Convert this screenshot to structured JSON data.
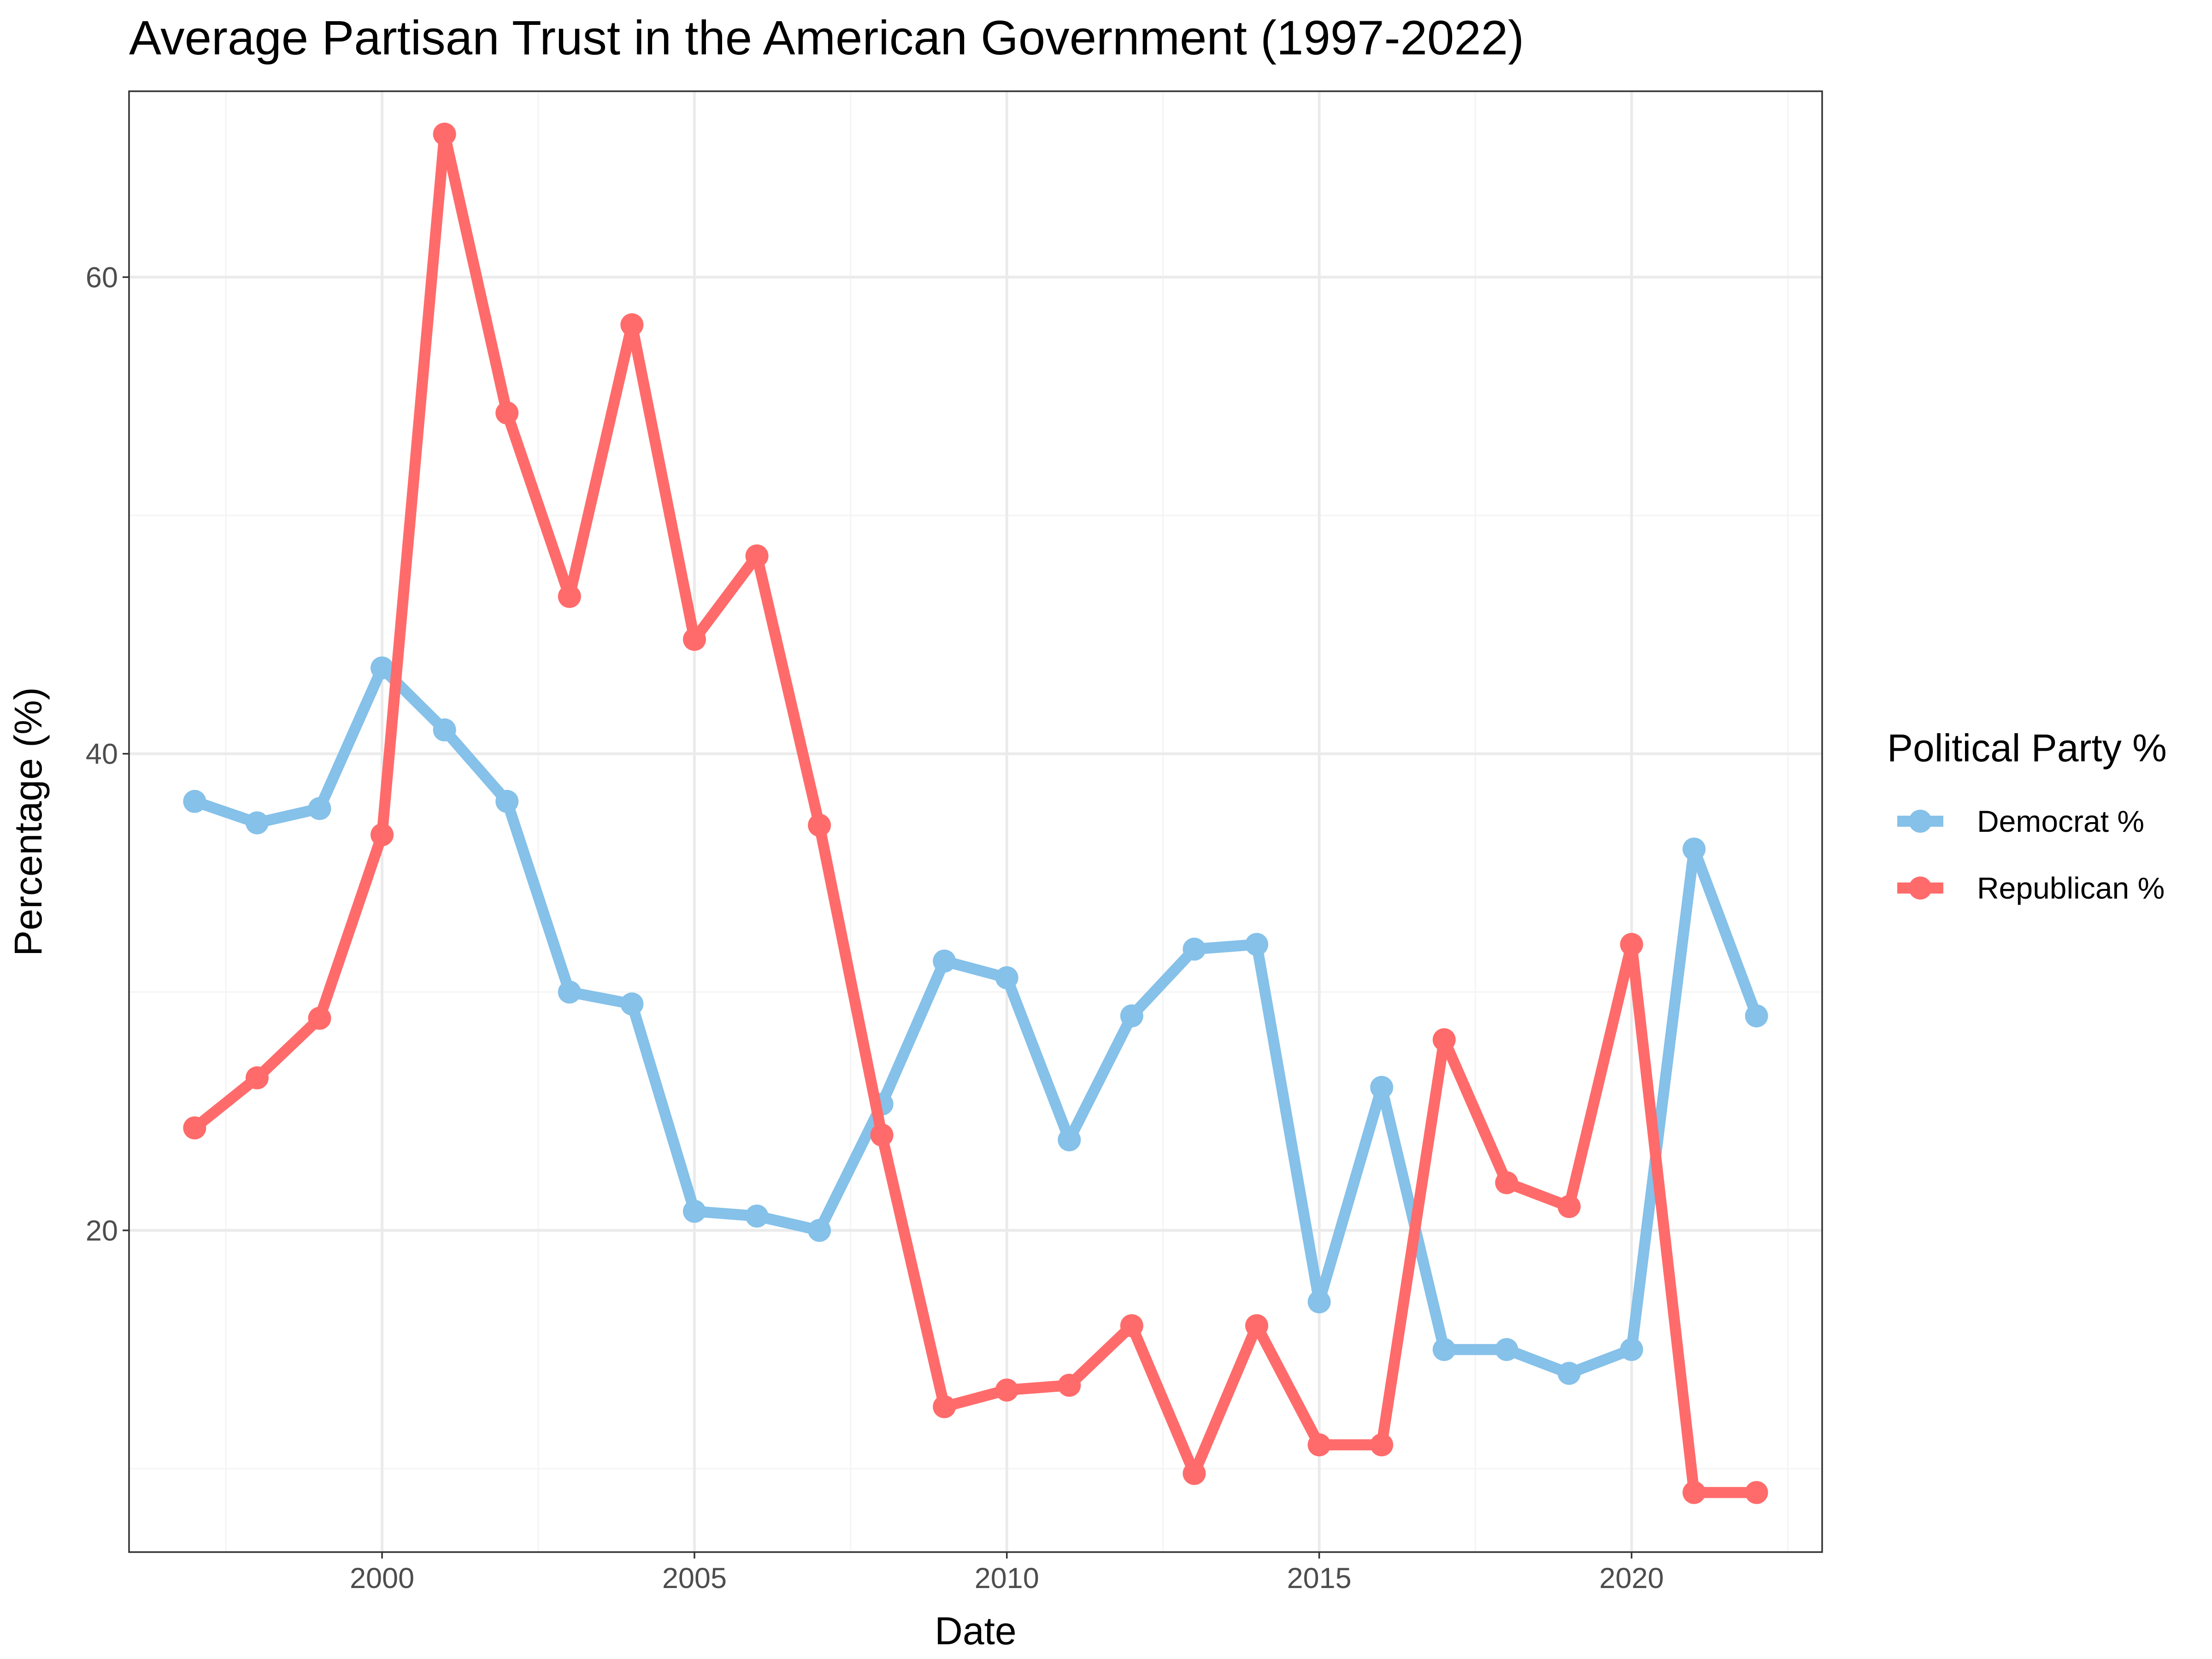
{
  "chart_data": {
    "type": "line",
    "title": "Average Partisan Trust in the American Government (1997-2022)",
    "xlabel": "Date",
    "ylabel": "Percentage (%)",
    "x": [
      1997,
      1998,
      1999,
      2000,
      2001,
      2002,
      2003,
      2004,
      2005,
      2006,
      2007,
      2008,
      2009,
      2010,
      2011,
      2012,
      2013,
      2014,
      2015,
      2016,
      2017,
      2018,
      2019,
      2020,
      2021,
      2022
    ],
    "xlim": [
      1995.95,
      2023.05
    ],
    "ylim": [
      6.5,
      67.8
    ],
    "x_ticks": [
      2000,
      2005,
      2010,
      2015,
      2020
    ],
    "x_minor_ticks": [
      1997.5,
      2002.5,
      2007.5,
      2012.5,
      2017.5,
      2022.5
    ],
    "y_ticks": [
      20,
      40,
      60
    ],
    "y_minor_ticks": [
      10,
      30,
      50
    ],
    "grid": true,
    "legend": {
      "title": "Political Party %",
      "position": "right"
    },
    "series": [
      {
        "name": "Democrat %",
        "color": "#85C1E9",
        "values": [
          38,
          37.1,
          37.7,
          43.6,
          41,
          38,
          30,
          29.5,
          20.8,
          20.6,
          20,
          25.3,
          31.3,
          30.6,
          23.8,
          29,
          31.8,
          32,
          17,
          26,
          15,
          15,
          14,
          15,
          36,
          29
        ]
      },
      {
        "name": "Republican %",
        "color": "#FF6B6B",
        "values": [
          24.3,
          26.4,
          28.9,
          36.6,
          66,
          54.3,
          46.6,
          58,
          44.8,
          48.3,
          37,
          24,
          12.6,
          13.3,
          13.5,
          16,
          9.8,
          16,
          11,
          11,
          28,
          22,
          21,
          32,
          9,
          9
        ]
      }
    ]
  }
}
